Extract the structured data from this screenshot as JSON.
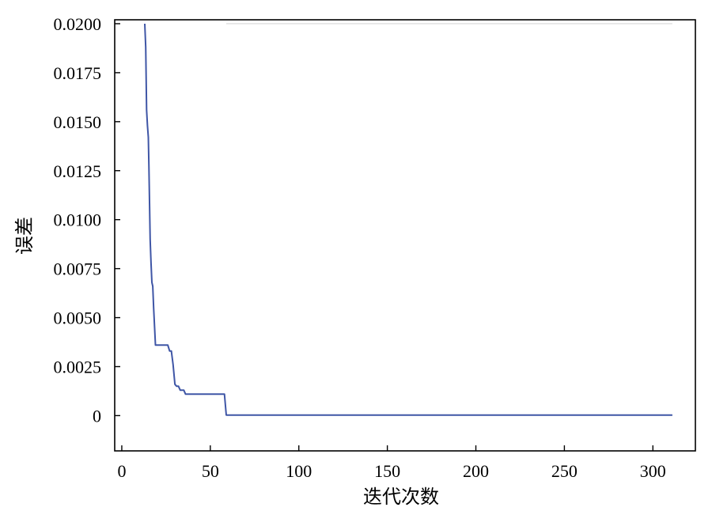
{
  "chart_data": {
    "type": "line",
    "title": "",
    "xlabel": "迭代次数",
    "ylabel": "误差",
    "xlim": [
      -4,
      324
    ],
    "ylim": [
      -0.0018,
      0.0202
    ],
    "xticks": [
      0,
      50,
      100,
      150,
      200,
      250,
      300
    ],
    "xtick_labels": [
      "0",
      "50",
      "100",
      "150",
      "200",
      "250",
      "300"
    ],
    "yticks": [
      0,
      0.0025,
      0.005,
      0.0075,
      0.01,
      0.0125,
      0.015,
      0.0175,
      0.02
    ],
    "ytick_labels": [
      "0",
      "0.0025",
      "0.0050",
      "0.0075",
      "0.0100",
      "0.0125",
      "0.0150",
      "0.0175",
      "0.0200"
    ],
    "grid": false,
    "legend": "none",
    "colors": {
      "line": "#3f56a6",
      "axis": "#000000",
      "faint_line": "#d8d8d8"
    },
    "reference_line": {
      "x": [
        59,
        311
      ],
      "y": 0.02
    },
    "series": [
      {
        "x": [
          13,
          13.5,
          14,
          14.5,
          15,
          15.3,
          16,
          16.5,
          17,
          17.5,
          18,
          19,
          20,
          22,
          24,
          26,
          27,
          28,
          29,
          30,
          31,
          32,
          33,
          34,
          35,
          36,
          38,
          50,
          57,
          58,
          59,
          80,
          150,
          250,
          311
        ],
        "y": [
          0.02,
          0.0188,
          0.0156,
          0.0148,
          0.0142,
          0.0128,
          0.009,
          0.0078,
          0.0068,
          0.0066,
          0.0055,
          0.0036,
          0.0036,
          0.0036,
          0.0036,
          0.0036,
          0.0033,
          0.0033,
          0.0026,
          0.0016,
          0.0015,
          0.0015,
          0.0013,
          0.0013,
          0.0013,
          0.0011,
          0.0011,
          0.0011,
          0.0011,
          0.0011,
          3e-05,
          3e-05,
          3e-05,
          3e-05,
          3e-05
        ]
      }
    ]
  }
}
